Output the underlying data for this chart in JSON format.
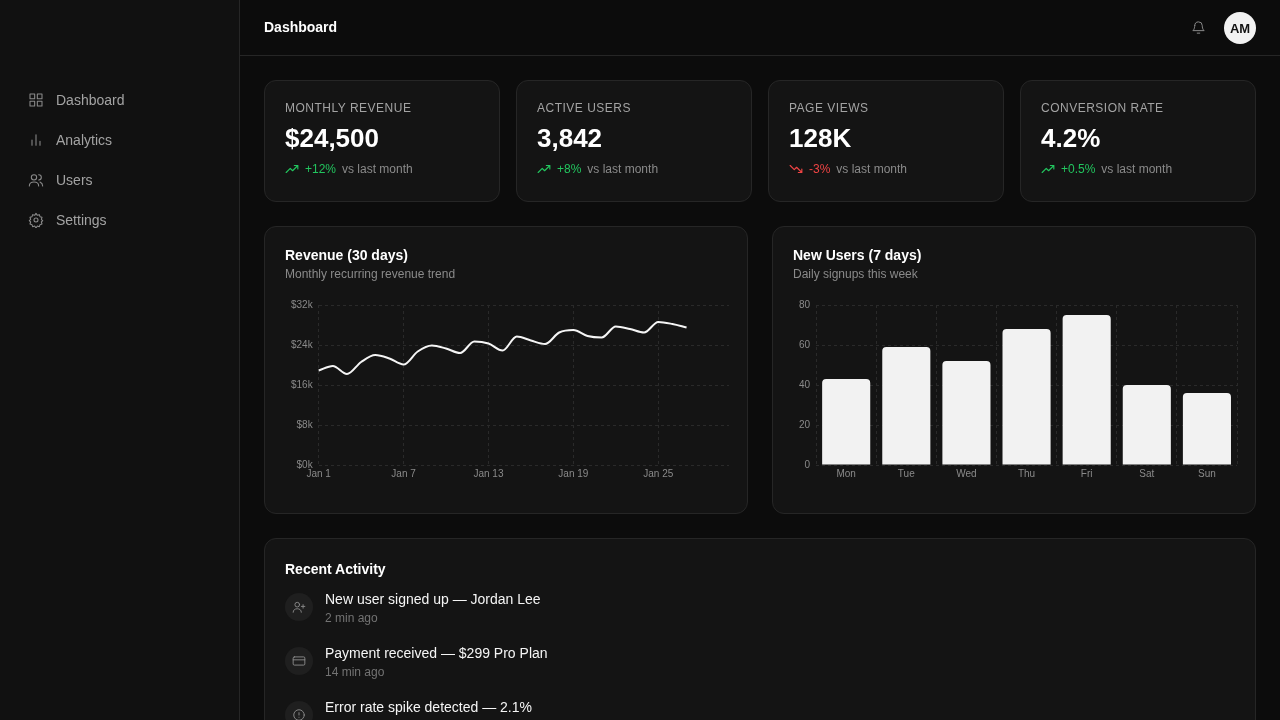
{
  "chart_data": [
    {
      "type": "other",
      "title": "Dashboard",
      "annotations": [
        "Dashboard",
        "Analytics",
        "Users",
        "Settings",
        "AM"
      ]
    },
    {
      "type": "other",
      "title": "MONTHLY REVENUE",
      "annotations": [
        "$24,500",
        "+12%",
        "vs last month"
      ],
      "color": "#22c55e"
    },
    {
      "type": "other",
      "title": "ACTIVE USERS",
      "annotations": [
        "3,842",
        "+8%",
        "vs last month"
      ],
      "color": "#22c55e"
    },
    {
      "type": "other",
      "title": "PAGE VIEWS",
      "annotations": [
        "128K",
        "-3%",
        "vs last month"
      ],
      "color": "#ef4444"
    },
    {
      "type": "other",
      "title": "CONVERSION RATE",
      "annotations": [
        "4.2%",
        "+0.5%",
        "vs last month"
      ],
      "color": "#22c55e"
    },
    {
      "type": "line",
      "title": "Revenue (30 days)",
      "subtitle": "Monthly recurring revenue trend",
      "categories": [
        "Jan 1",
        null,
        null,
        null,
        null,
        null,
        "Jan 7",
        null,
        null,
        null,
        null,
        null,
        "Jan 13",
        null,
        null,
        null,
        null,
        null,
        "Jan 19",
        null,
        null,
        null,
        null,
        null,
        "Jan 25",
        null,
        null,
        null,
        null,
        null
      ],
      "values": [
        18.9,
        19.8,
        18.2,
        20.6,
        22.0,
        21.3,
        20.1,
        22.7,
        23.9,
        23.3,
        22.4,
        24.7,
        24.3,
        22.9,
        25.7,
        24.9,
        24.2,
        26.5,
        27.0,
        25.8,
        25.5,
        27.7,
        27.2,
        26.5,
        28.6,
        28.2,
        27.5,
        null,
        null,
        null
      ],
      "color": "#f5f5f5",
      "ylim": [
        0,
        32
      ],
      "yticks": [
        {
          "value": 0,
          "label": "$0k"
        },
        {
          "value": 8,
          "label": "$8k"
        },
        {
          "value": 16,
          "label": "$16k"
        },
        {
          "value": 24,
          "label": "$24k"
        },
        {
          "value": 32,
          "label": "$32k"
        }
      ],
      "grid": true,
      "marker": "none"
    },
    {
      "type": "bar",
      "title": "New Users (7 days)",
      "subtitle": "Daily signups this week",
      "categories": [
        "Mon",
        "Tue",
        "Wed",
        "Thu",
        "Fri",
        "Sat",
        "Sun"
      ],
      "values": [
        43,
        59,
        52,
        68,
        75,
        40,
        36
      ],
      "color": "#f2f2f2",
      "ylim": [
        0,
        80
      ],
      "yticks": [
        0,
        20,
        40,
        60,
        80
      ],
      "grid": true
    },
    {
      "type": "other",
      "title": "Recent Activity",
      "annotations": [
        "New user signed up — Jordan Lee",
        "2 min ago",
        "Payment received — $299 Pro Plan",
        "14 min ago",
        "Error rate spike detected — 2.1%"
      ]
    }
  ]
}
